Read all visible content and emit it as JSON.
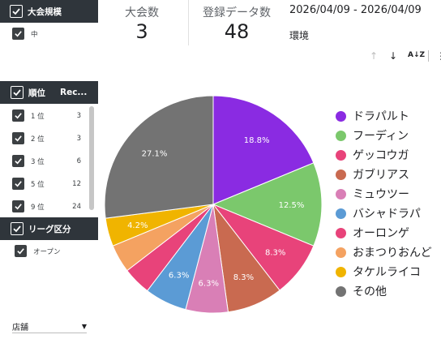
{
  "filters": {
    "taikai_kibo": {
      "title": "大会規模",
      "items": [
        {
          "label": "中",
          "checked": true
        }
      ]
    },
    "juni": {
      "title": "順位",
      "col2": "Rec...",
      "items": [
        {
          "label": "1 位",
          "count": "3"
        },
        {
          "label": "2 位",
          "count": "3"
        },
        {
          "label": "3 位",
          "count": "6"
        },
        {
          "label": "5 位",
          "count": "12"
        },
        {
          "label": "9 位",
          "count": "24"
        }
      ]
    },
    "league": {
      "title": "リーグ区分",
      "items": [
        {
          "label": "オープン",
          "checked": true
        }
      ]
    },
    "store": {
      "label": "店舗"
    }
  },
  "kpis": {
    "tournaments": {
      "label": "大会数",
      "value": "3"
    },
    "registered": {
      "label": "登録データ数",
      "value": "48"
    }
  },
  "date_range": "2026/04/09 - 2026/04/09",
  "environment_label": "環境",
  "colors": {
    "panel_header": "#2f353b"
  },
  "chart_data": {
    "type": "pie",
    "slices": [
      {
        "name": "ドラパルト",
        "value": 18.8,
        "color": "#8a2be2",
        "label": "18.8%"
      },
      {
        "name": "フーディン",
        "value": 12.5,
        "color": "#7bc86c",
        "label": "12.5%"
      },
      {
        "name": "ゲッコウガ",
        "value": 8.3,
        "color": "#e8437a",
        "label": "8.3%"
      },
      {
        "name": "ガブリアス",
        "value": 8.3,
        "color": "#c96a50",
        "label": "8.3%"
      },
      {
        "name": "ミュウツー",
        "value": 6.3,
        "color": "#d97fb6",
        "label": "6.3%"
      },
      {
        "name": "バシャドラパ",
        "value": 6.3,
        "color": "#5b9bd5",
        "label": "6.3%"
      },
      {
        "name": "オーロンゲ",
        "value": 4.2,
        "color": "#e8437a",
        "label": ""
      },
      {
        "name": "おまつりおんど",
        "value": 4.2,
        "color": "#f4a261",
        "label": ""
      },
      {
        "name": "タケルライコ",
        "value": 4.2,
        "color": "#f0b400",
        "label": "4.2%"
      },
      {
        "name": "その他",
        "value": 27.1,
        "color": "#737373",
        "label": "27.1%"
      }
    ],
    "legend_position": "right"
  }
}
